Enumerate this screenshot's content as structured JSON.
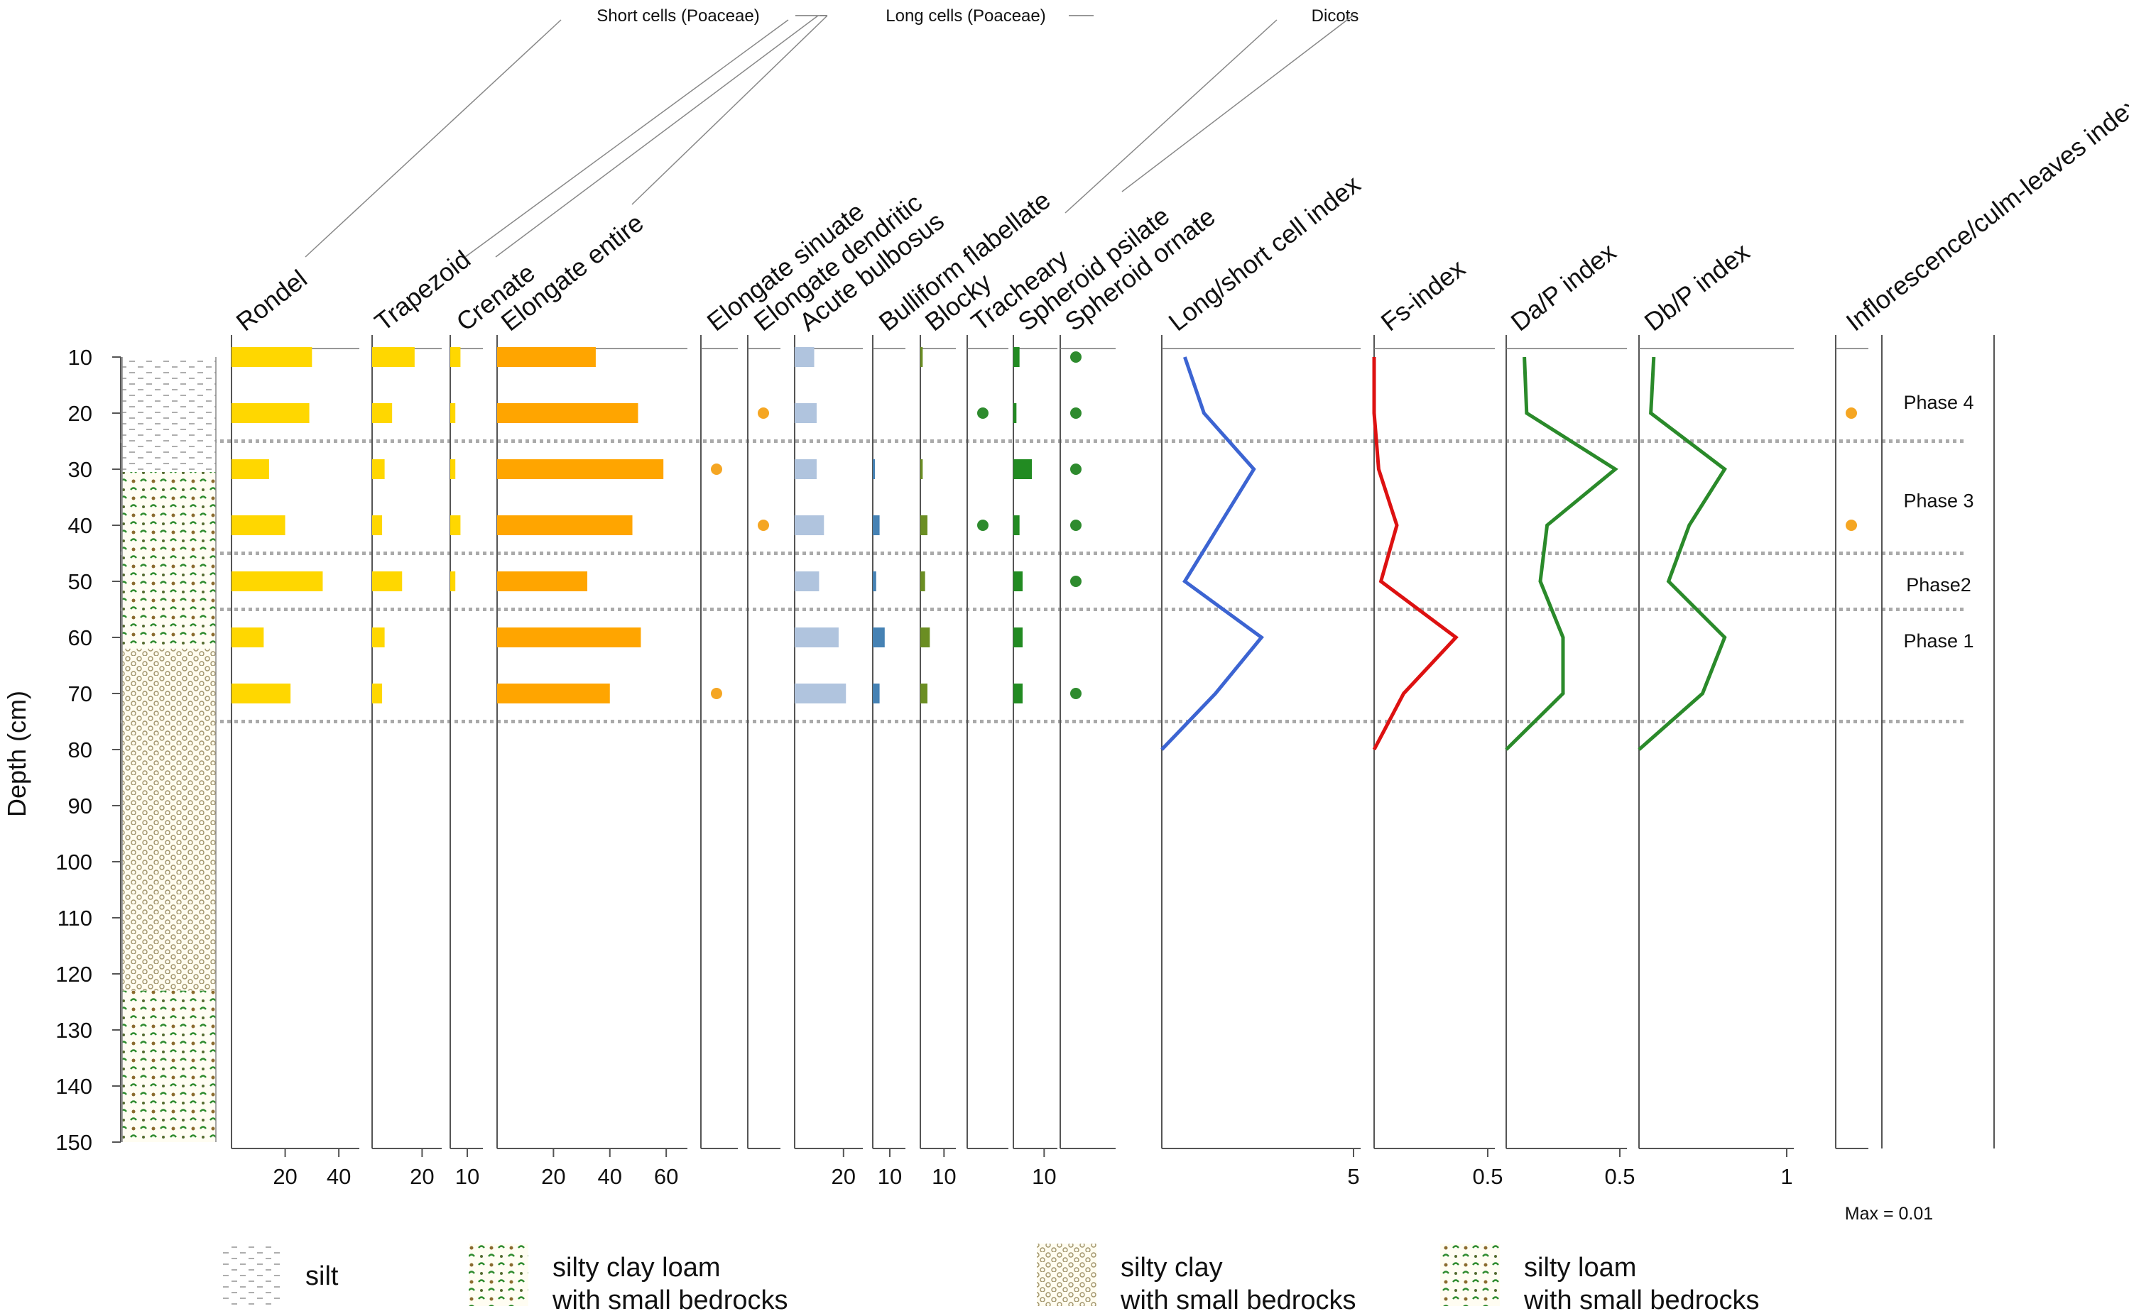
{
  "chart_data": {
    "type": "stratigraphic-diagram",
    "ylabel": "Depth (cm)",
    "depth_ticks": [
      10,
      20,
      30,
      40,
      50,
      60,
      70,
      80,
      90,
      100,
      110,
      120,
      130,
      140,
      150
    ],
    "sample_depths": [
      10,
      20,
      30,
      40,
      50,
      60,
      70
    ],
    "groups": [
      "Short cells (Poaceae)",
      "Long cells (Poaceae)",
      "Dicots"
    ],
    "columns": [
      {
        "name": "Rondel",
        "kind": "bar",
        "color": "#FFD700",
        "scale_max": 45,
        "axis_ticks": [
          "20",
          "40"
        ],
        "values": [
          30,
          29,
          14,
          20,
          34,
          12,
          22
        ]
      },
      {
        "name": "Trapezoid",
        "kind": "bar",
        "color": "#FFD700",
        "scale_max": 25,
        "axis_ticks": [
          "20"
        ],
        "values": [
          17,
          8,
          5,
          4,
          12,
          5,
          4
        ]
      },
      {
        "name": "Crenate",
        "kind": "bar",
        "color": "#FFD700",
        "scale_max": 15,
        "axis_ticks": [
          "10"
        ],
        "values": [
          6,
          3,
          3,
          6,
          3,
          0,
          0
        ]
      },
      {
        "name": "Elongate entire",
        "kind": "bar",
        "color": "#FFA500",
        "scale_max": 65,
        "axis_ticks": [
          "20",
          "40",
          "60"
        ],
        "values": [
          35,
          50,
          59,
          48,
          32,
          51,
          40
        ]
      },
      {
        "name": "Elongate sinuate",
        "kind": "dot",
        "color": "#F5A623",
        "present": [
          0,
          0,
          1,
          0,
          0,
          0,
          1
        ]
      },
      {
        "name": "Elongate dendritic",
        "kind": "dot",
        "color": "#F5A623",
        "present": [
          0,
          1,
          0,
          1,
          0,
          0,
          0
        ]
      },
      {
        "name": "Acute bulbosus",
        "kind": "bar",
        "color": "#B0C4DE",
        "scale_max": 25,
        "axis_ticks": [
          "20"
        ],
        "values": [
          8,
          9,
          9,
          12,
          10,
          18,
          21
        ]
      },
      {
        "name": "Bulliform flabellate",
        "kind": "bar",
        "color": "#4682B4",
        "scale_max": 15,
        "axis_ticks": [
          "10"
        ],
        "values": [
          0,
          0,
          1,
          4,
          2,
          7,
          4
        ]
      },
      {
        "name": "Blocky",
        "kind": "bar",
        "color": "#6B8E23",
        "scale_max": 12,
        "axis_ticks": [
          "10"
        ],
        "values": [
          1,
          0,
          1,
          3,
          2,
          4,
          3
        ]
      },
      {
        "name": "Tracheary",
        "kind": "dot",
        "color": "#2E8B2E",
        "present": [
          0,
          1,
          0,
          1,
          0,
          0,
          0
        ]
      },
      {
        "name": "Spheroid psilate",
        "kind": "bar",
        "color": "#228B22",
        "scale_max": 12,
        "axis_ticks": [
          "10"
        ],
        "values": [
          2,
          1,
          6,
          2,
          3,
          3,
          3
        ]
      },
      {
        "name": "Spheroid ornate",
        "kind": "dot",
        "color": "#2E8B2E",
        "present": [
          1,
          1,
          1,
          1,
          1,
          0,
          1
        ]
      },
      {
        "name": "Long/short cell index",
        "kind": "line",
        "color": "#3C64D2",
        "scale_max": 5,
        "axis_ticks": [
          "5"
        ],
        "values": [
          0.6,
          1.1,
          2.4,
          1.5,
          0.6,
          2.6,
          1.4
        ],
        "end_value": 0
      },
      {
        "name": "Fs-index",
        "kind": "line",
        "color": "#DD1111",
        "scale_max": 0.5,
        "axis_ticks": [
          "0.5"
        ],
        "values": [
          0,
          0,
          0.02,
          0.1,
          0.03,
          0.36,
          0.13
        ],
        "end_value": 0
      },
      {
        "name": "Da/P index",
        "kind": "line",
        "color": "#2A8A2A",
        "scale_max": 0.5,
        "axis_ticks": [
          "0.5"
        ],
        "values": [
          0.08,
          0.09,
          0.48,
          0.18,
          0.15,
          0.25,
          0.25
        ],
        "end_value": 0
      },
      {
        "name": "Db/P index",
        "kind": "line",
        "color": "#2A8A2A",
        "scale_max": 1,
        "axis_ticks": [
          "1"
        ],
        "values": [
          0.1,
          0.08,
          0.58,
          0.34,
          0.2,
          0.58,
          0.43
        ],
        "end_value": 0
      },
      {
        "name": "Inflorescence/culm-leaves index",
        "kind": "dot",
        "color": "#F5A623",
        "present": [
          0,
          1,
          0,
          1,
          0,
          0,
          0
        ],
        "note": "Max = 0.01"
      }
    ],
    "phases": [
      {
        "label": "Phase 4",
        "depth": 18
      },
      {
        "label": "Phase 3",
        "depth": 35.5
      },
      {
        "label": "Phase2",
        "depth": 50.5
      },
      {
        "label": "Phase 1",
        "depth": 60.5
      }
    ],
    "phase_boundaries": [
      25,
      45,
      55,
      75
    ],
    "lithology_legend": [
      "silt",
      "silty clay loam\nwith small bedrocks",
      "silty clay\nwith small bedrocks",
      "silty loam\nwith small bedrocks"
    ]
  }
}
